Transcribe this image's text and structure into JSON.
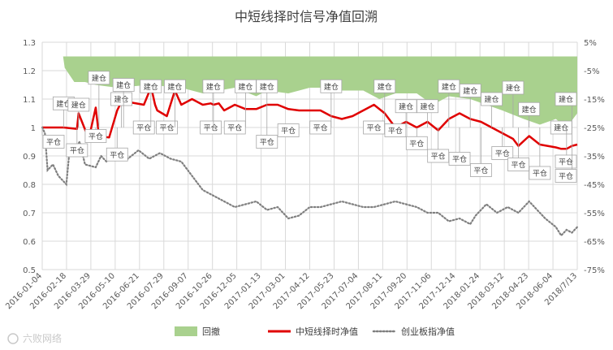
{
  "chart_data": {
    "type": "line",
    "title": "中短线择时信号净值回溯",
    "x_tick_labels": [
      "2016-01-04",
      "2016-02-18",
      "2016-03-29",
      "2016-05-10",
      "2016-06-21",
      "2016-07-29",
      "2016-09-07",
      "2016-10-26",
      "2016-12-05",
      "2017-01-13",
      "2017-03-01",
      "2017-04-12",
      "2017-05-23",
      "2017-07-04",
      "2017-08-11",
      "2017-09-20",
      "2017-11-06",
      "2017-12-14",
      "2018-01-24",
      "2018-03-12",
      "2018-04-23",
      "2018-06-04",
      "2018/7/13"
    ],
    "y_left": {
      "min": 0.5,
      "max": 1.3,
      "ticks": [
        "0.5",
        "0.6",
        "0.7",
        "0.8",
        "0.9",
        "1",
        "1.1",
        "1.2",
        "1.3"
      ]
    },
    "y_right": {
      "min": -75,
      "max": 5,
      "ticks": [
        "-75%",
        "-65%",
        "-55%",
        "-45%",
        "-35%",
        "-25%",
        "-15%",
        "-5%",
        "5%"
      ]
    },
    "colors": {
      "drawdown": "#a9d18e",
      "strategy": "#e00000",
      "index": "#7f7f7f",
      "grid": "#d9d9d9"
    },
    "series": [
      {
        "name": "回撤",
        "kind": "area",
        "axis": "right",
        "x": [
          0,
          0.03,
          0.039,
          0.042,
          0.06,
          0.08,
          0.1,
          0.14,
          0.2,
          0.26,
          0.3,
          0.36,
          0.4,
          0.42,
          0.46,
          0.5,
          0.53,
          0.56,
          0.6,
          0.63,
          0.66,
          0.7,
          0.73,
          0.76,
          0.8,
          0.83,
          0.86,
          0.9,
          0.93,
          0.96,
          0.98,
          1.0
        ],
        "values": [
          0,
          0,
          0,
          -4,
          -9,
          -9,
          -10,
          -11,
          -10,
          -11,
          -13,
          -11,
          -14,
          -12,
          -13,
          -11,
          -11,
          -12,
          -12,
          -15,
          -13,
          -13,
          -17,
          -14,
          -15,
          -17,
          -19,
          -22,
          -24,
          -22,
          -25,
          -20
        ]
      },
      {
        "name": "中短线择时净值",
        "kind": "line",
        "axis": "left",
        "x": [
          0,
          0.04,
          0.065,
          0.068,
          0.087,
          0.1,
          0.106,
          0.125,
          0.14,
          0.148,
          0.152,
          0.16,
          0.19,
          0.203,
          0.205,
          0.211,
          0.215,
          0.233,
          0.248,
          0.26,
          0.28,
          0.3,
          0.315,
          0.32,
          0.33,
          0.34,
          0.36,
          0.38,
          0.4,
          0.42,
          0.44,
          0.46,
          0.48,
          0.52,
          0.54,
          0.56,
          0.58,
          0.6,
          0.62,
          0.64,
          0.66,
          0.68,
          0.7,
          0.72,
          0.74,
          0.76,
          0.78,
          0.8,
          0.82,
          0.84,
          0.86,
          0.88,
          0.89,
          0.91,
          0.93,
          0.96,
          0.97,
          0.98,
          0.99,
          1.0
        ],
        "values": [
          1.0,
          1.0,
          0.995,
          1.05,
          0.96,
          1.07,
          0.97,
          0.965,
          1.06,
          1.09,
          1.08,
          1.09,
          1.08,
          1.14,
          1.13,
          1.08,
          1.06,
          1.04,
          1.13,
          1.08,
          1.1,
          1.08,
          1.085,
          1.08,
          1.085,
          1.06,
          1.08,
          1.065,
          1.065,
          1.08,
          1.08,
          1.065,
          1.06,
          1.06,
          1.04,
          1.03,
          1.04,
          1.06,
          1.08,
          1.05,
          1.0,
          1.02,
          1.0,
          1.02,
          0.99,
          1.03,
          1.05,
          1.03,
          1.02,
          1.0,
          0.98,
          0.96,
          0.935,
          0.97,
          0.94,
          0.93,
          0.925,
          0.925,
          0.935,
          0.94
        ]
      },
      {
        "name": "创业板指净值",
        "kind": "line",
        "axis": "left",
        "x": [
          0,
          0.005,
          0.01,
          0.02,
          0.03,
          0.045,
          0.05,
          0.06,
          0.07,
          0.08,
          0.1,
          0.11,
          0.12,
          0.14,
          0.16,
          0.18,
          0.2,
          0.22,
          0.24,
          0.26,
          0.28,
          0.3,
          0.32,
          0.34,
          0.36,
          0.38,
          0.4,
          0.42,
          0.44,
          0.46,
          0.48,
          0.5,
          0.52,
          0.54,
          0.56,
          0.58,
          0.6,
          0.62,
          0.64,
          0.66,
          0.68,
          0.7,
          0.72,
          0.74,
          0.76,
          0.78,
          0.8,
          0.81,
          0.83,
          0.85,
          0.87,
          0.89,
          0.91,
          0.92,
          0.94,
          0.96,
          0.97,
          0.98,
          0.99,
          1.0
        ],
        "values": [
          1.0,
          0.98,
          0.85,
          0.87,
          0.83,
          0.8,
          0.9,
          0.92,
          0.95,
          0.87,
          0.86,
          0.9,
          0.88,
          0.91,
          0.89,
          0.92,
          0.89,
          0.91,
          0.89,
          0.88,
          0.83,
          0.78,
          0.76,
          0.74,
          0.72,
          0.73,
          0.74,
          0.71,
          0.72,
          0.68,
          0.69,
          0.72,
          0.72,
          0.73,
          0.74,
          0.73,
          0.72,
          0.72,
          0.73,
          0.74,
          0.73,
          0.72,
          0.7,
          0.7,
          0.67,
          0.68,
          0.66,
          0.69,
          0.73,
          0.7,
          0.72,
          0.7,
          0.74,
          0.72,
          0.68,
          0.65,
          0.62,
          0.64,
          0.63,
          0.65
        ]
      }
    ],
    "annotations": [
      {
        "text": "平仓",
        "x": 0.0,
        "y": 0.95,
        "dir": "down"
      },
      {
        "text": "建仓",
        "x": 0.04,
        "y": 1.085,
        "dir": "up"
      },
      {
        "text": "平仓",
        "x": 0.065,
        "y": 0.92,
        "dir": "down"
      },
      {
        "text": "建仓",
        "x": 0.068,
        "y": 1.08,
        "dir": "up"
      },
      {
        "text": "建仓",
        "x": 0.106,
        "y": 1.175,
        "dir": "up"
      },
      {
        "text": "平仓",
        "x": 0.1,
        "y": 0.97,
        "dir": "down"
      },
      {
        "text": "平仓",
        "x": 0.14,
        "y": 0.905,
        "dir": "down"
      },
      {
        "text": "建仓",
        "x": 0.148,
        "y": 1.1,
        "dir": "up"
      },
      {
        "text": "建仓",
        "x": 0.152,
        "y": 1.15,
        "dir": "up"
      },
      {
        "text": "平仓",
        "x": 0.19,
        "y": 1.0,
        "dir": "down"
      },
      {
        "text": "建仓",
        "x": 0.203,
        "y": 1.145,
        "dir": "up"
      },
      {
        "text": "平仓",
        "x": 0.233,
        "y": 1.0,
        "dir": "down"
      },
      {
        "text": "建仓",
        "x": 0.248,
        "y": 1.145,
        "dir": "up"
      },
      {
        "text": "平仓",
        "x": 0.315,
        "y": 1.0,
        "dir": "down"
      },
      {
        "text": "建仓",
        "x": 0.32,
        "y": 1.145,
        "dir": "up"
      },
      {
        "text": "平仓",
        "x": 0.36,
        "y": 1.0,
        "dir": "down"
      },
      {
        "text": "建仓",
        "x": 0.38,
        "y": 1.145,
        "dir": "up"
      },
      {
        "text": "平仓",
        "x": 0.42,
        "y": 0.95,
        "dir": "down"
      },
      {
        "text": "建仓",
        "x": 0.42,
        "y": 1.145,
        "dir": "up"
      },
      {
        "text": "平仓",
        "x": 0.46,
        "y": 0.99,
        "dir": "down"
      },
      {
        "text": "平仓",
        "x": 0.52,
        "y": 1.0,
        "dir": "down"
      },
      {
        "text": "建仓",
        "x": 0.54,
        "y": 1.145,
        "dir": "up"
      },
      {
        "text": "平仓",
        "x": 0.62,
        "y": 1.0,
        "dir": "down"
      },
      {
        "text": "建仓",
        "x": 0.64,
        "y": 1.145,
        "dir": "up"
      },
      {
        "text": "平仓",
        "x": 0.66,
        "y": 0.99,
        "dir": "down"
      },
      {
        "text": "建仓",
        "x": 0.68,
        "y": 1.075,
        "dir": "up"
      },
      {
        "text": "平仓",
        "x": 0.7,
        "y": 0.945,
        "dir": "down"
      },
      {
        "text": "建仓",
        "x": 0.72,
        "y": 1.075,
        "dir": "up"
      },
      {
        "text": "平仓",
        "x": 0.74,
        "y": 0.9,
        "dir": "down"
      },
      {
        "text": "建仓",
        "x": 0.76,
        "y": 1.145,
        "dir": "up"
      },
      {
        "text": "平仓",
        "x": 0.78,
        "y": 0.89,
        "dir": "down"
      },
      {
        "text": "建仓",
        "x": 0.8,
        "y": 1.13,
        "dir": "up"
      },
      {
        "text": "平仓",
        "x": 0.82,
        "y": 0.85,
        "dir": "down"
      },
      {
        "text": "建仓",
        "x": 0.84,
        "y": 1.1,
        "dir": "up"
      },
      {
        "text": "平仓",
        "x": 0.86,
        "y": 0.91,
        "dir": "down"
      },
      {
        "text": "建仓",
        "x": 0.88,
        "y": 1.14,
        "dir": "up"
      },
      {
        "text": "平仓",
        "x": 0.89,
        "y": 0.87,
        "dir": "down"
      },
      {
        "text": "建仓",
        "x": 0.91,
        "y": 1.065,
        "dir": "up"
      },
      {
        "text": "平仓",
        "x": 0.93,
        "y": 0.84,
        "dir": "down"
      },
      {
        "text": "建仓",
        "x": 0.97,
        "y": 1.0,
        "dir": "up"
      },
      {
        "text": "平仓",
        "x": 0.98,
        "y": 0.88,
        "dir": "down"
      },
      {
        "text": "平仓",
        "x": 0.99,
        "y": 0.83,
        "dir": "down"
      },
      {
        "text": "建仓",
        "x": 0.99,
        "y": 1.1,
        "dir": "up"
      }
    ],
    "legend": {
      "placement": "bottom",
      "items": [
        {
          "label": "回撤",
          "style": "area"
        },
        {
          "label": "中短线择时净值",
          "style": "line"
        },
        {
          "label": "创业板指净值",
          "style": "dotted"
        }
      ]
    },
    "grid": true
  },
  "watermark": {
    "text": "六败网络"
  }
}
